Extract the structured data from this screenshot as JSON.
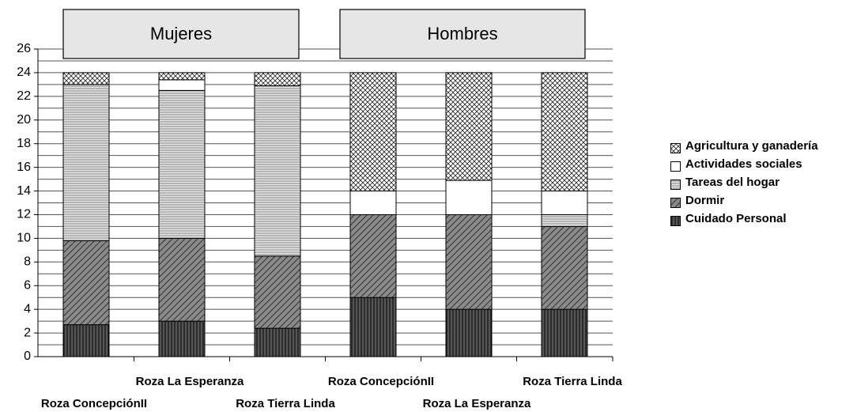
{
  "chart_data": {
    "type": "stacked_bar",
    "group_labels": [
      "Mujeres",
      "Hombres"
    ],
    "categories": [
      "Roza ConcepciónII",
      "Roza La Esperanza",
      "Roza Tierra Linda",
      "Roza ConcepciónII",
      "Roza La Esperanza",
      "Roza Tierra Linda"
    ],
    "series": [
      {
        "name": "Cuidado Personal",
        "color": "#444444",
        "pattern": "vertical",
        "values": [
          2.7,
          3.0,
          2.4,
          5.0,
          4.0,
          4.0
        ]
      },
      {
        "name": "Dormir",
        "color": "#888888",
        "pattern": "diagonal",
        "values": [
          7.1,
          7.0,
          6.1,
          7.0,
          8.0,
          7.0
        ]
      },
      {
        "name": "Tareas del hogar",
        "color": "#dddddd",
        "pattern": "horizontal",
        "values": [
          13.2,
          12.5,
          14.4,
          0,
          0,
          1.0
        ]
      },
      {
        "name": "Actividades sociales",
        "color": "#ffffff",
        "pattern": "none",
        "values": [
          0,
          0.9,
          0,
          2.0,
          2.9,
          2.0
        ]
      },
      {
        "name": "Agricultura y ganadería",
        "color": "#ffffff",
        "pattern": "crosshatch",
        "values": [
          1.0,
          0.6,
          1.1,
          10.0,
          9.1,
          10.0
        ]
      }
    ],
    "ylim": [
      0,
      26
    ],
    "yticks": [
      0,
      2,
      4,
      6,
      8,
      10,
      12,
      14,
      16,
      18,
      20,
      22,
      24,
      26
    ],
    "grid": true,
    "legend": "right"
  }
}
